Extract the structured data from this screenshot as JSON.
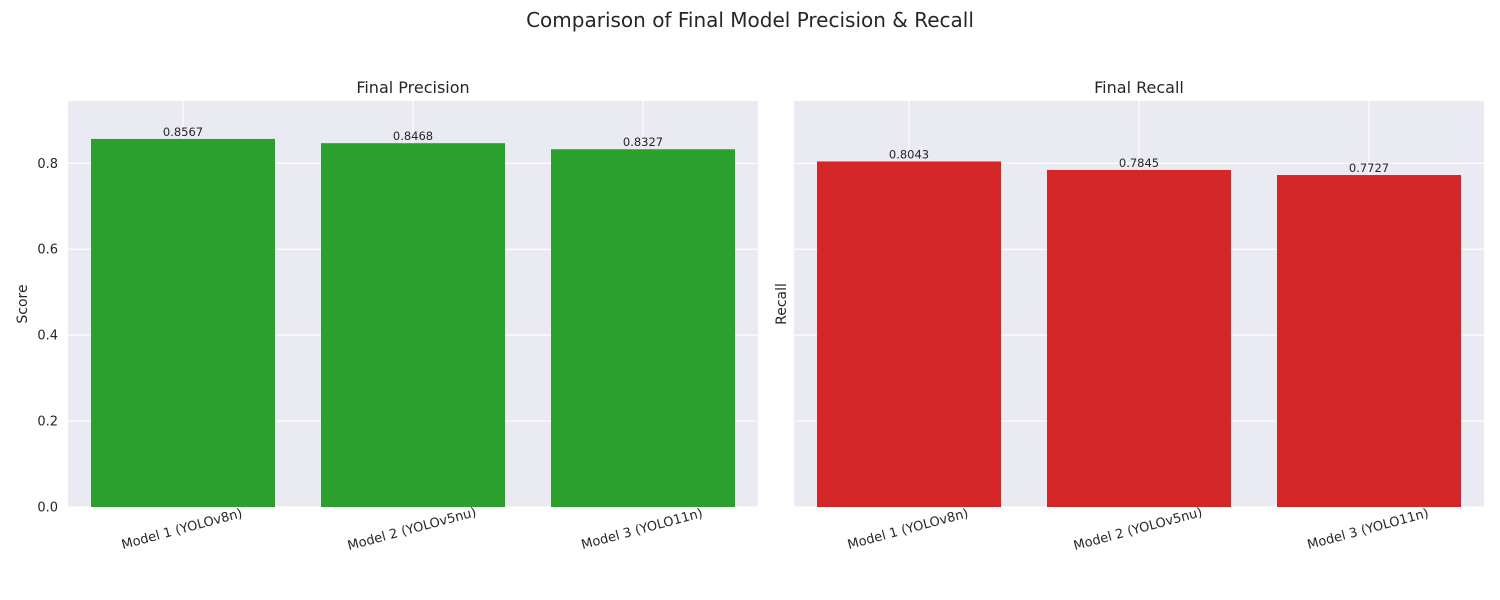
{
  "figure": {
    "title": "Comparison of Final Model Precision & Recall"
  },
  "chart_data": [
    {
      "type": "bar",
      "title": "Final Precision",
      "xlabel": "",
      "ylabel": "Score",
      "categories": [
        "Model 1 (YOLOv8n)",
        "Model 2 (YOLOv5nu)",
        "Model 3 (YOLO11n)"
      ],
      "values": [
        0.8567,
        0.8468,
        0.8327
      ],
      "value_labels": [
        "0.8567",
        "0.8468",
        "0.8327"
      ],
      "color": "#2ca02c",
      "ylim": [
        0,
        0.945
      ],
      "yticks": [
        0.0,
        0.2,
        0.4,
        0.6,
        0.8
      ],
      "ytick_labels": [
        "0.0",
        "0.2",
        "0.4",
        "0.6",
        "0.8"
      ],
      "show_ytick_labels": true,
      "grid": true
    },
    {
      "type": "bar",
      "title": "Final Recall",
      "xlabel": "",
      "ylabel": "Recall",
      "categories": [
        "Model 1 (YOLOv8n)",
        "Model 2 (YOLOv5nu)",
        "Model 3 (YOLO11n)"
      ],
      "values": [
        0.8043,
        0.7845,
        0.7727
      ],
      "value_labels": [
        "0.8043",
        "0.7845",
        "0.7727"
      ],
      "color": "#d62728",
      "ylim": [
        0,
        0.945
      ],
      "yticks": [
        0.0,
        0.2,
        0.4,
        0.6,
        0.8
      ],
      "ytick_labels": [
        "0.0",
        "0.2",
        "0.4",
        "0.6",
        "0.8"
      ],
      "show_ytick_labels": false,
      "grid": true
    }
  ]
}
